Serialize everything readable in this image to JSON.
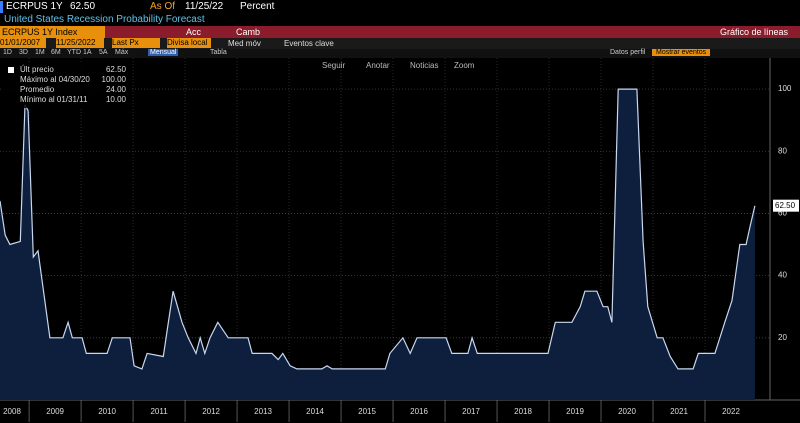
{
  "header": {
    "ticker": "ECRPUS 1Y",
    "last": "62.50",
    "as_of_label": "As Of",
    "as_of": "11/25/22",
    "units": "Percent"
  },
  "description": "United States Recession Probability Forecast",
  "red_bar": {
    "security": "ECRPUS 1Y Index",
    "actions": "Acc",
    "change": "Camb",
    "chart_type": "Gráfico de líneas"
  },
  "toolbar": {
    "start": "01/01/2007",
    "end": "11/25/2022",
    "field": "Last Px",
    "currency": "Divisa local",
    "moving_avg": "Med móv",
    "events": "Eventos clave",
    "profile": "Datos perfil",
    "show_events": "Mostrar eventos"
  },
  "periods": [
    "1D",
    "3D",
    "1M",
    "6M",
    "YTD",
    "1A",
    "5A",
    "Máx"
  ],
  "frequency": "Mensual",
  "table_button": "Tabla",
  "chart_tools": [
    "Seguir",
    "Anotar",
    "Noticias",
    "Zoom"
  ],
  "legend_stats": [
    {
      "label": "Últ precio",
      "value": "62.50"
    },
    {
      "label": "Máximo al 04/30/20",
      "value": "100.00"
    },
    {
      "label": "Promedio",
      "value": "24.00"
    },
    {
      "label": "Mínimo al 01/31/11",
      "value": "10.00"
    }
  ],
  "chart_data": {
    "type": "area",
    "xlim": [
      2008.44,
      2023.25
    ],
    "ylim": [
      0,
      110
    ],
    "yticks": [
      20,
      40,
      60,
      80,
      100
    ],
    "xticks": [
      2008,
      2009,
      2010,
      2011,
      2012,
      2013,
      2014,
      2015,
      2016,
      2017,
      2018,
      2019,
      2020,
      2021,
      2022
    ],
    "grid": true,
    "last_value_label": "62.50",
    "series": [
      {
        "name": "Últ precio",
        "color": "#c8d8f0",
        "fill": "#0d1f3d",
        "x": [
          2008.44,
          2008.54,
          2008.63,
          2008.83,
          2008.92,
          2008.98,
          2009.08,
          2009.17,
          2009.4,
          2009.65,
          2009.75,
          2009.83,
          2010.02,
          2010.1,
          2010.5,
          2010.6,
          2010.94,
          2011.02,
          2011.17,
          2011.27,
          2011.58,
          2011.67,
          2011.77,
          2011.94,
          2012.06,
          2012.21,
          2012.29,
          2012.38,
          2012.48,
          2012.63,
          2012.83,
          2013.21,
          2013.29,
          2013.67,
          2013.79,
          2013.88,
          2014.02,
          2014.15,
          2014.63,
          2014.73,
          2014.83,
          2015.85,
          2015.94,
          2016.19,
          2016.33,
          2016.46,
          2017.02,
          2017.13,
          2017.44,
          2017.52,
          2017.62,
          2018.98,
          2019.12,
          2019.44,
          2019.6,
          2019.69,
          2019.92,
          2020.04,
          2020.13,
          2020.21,
          2020.33,
          2020.69,
          2020.81,
          2020.9,
          2021.08,
          2021.19,
          2021.33,
          2021.48,
          2021.77,
          2021.87,
          2022.19,
          2022.38,
          2022.52,
          2022.67,
          2022.79,
          2022.87,
          2022.96
        ],
        "values": [
          64,
          53,
          50,
          51,
          95,
          93,
          46,
          48,
          20,
          20,
          25,
          20,
          20,
          15,
          15,
          20,
          20,
          11,
          10,
          15,
          14,
          24,
          35,
          25,
          20,
          15,
          20,
          15,
          20,
          25,
          20,
          20,
          15,
          15,
          13,
          15,
          11,
          10,
          10,
          11,
          10,
          10,
          15,
          20,
          15,
          20,
          20,
          15,
          15,
          20,
          15,
          15,
          25,
          25,
          30,
          35,
          35,
          30,
          30,
          25,
          100,
          100,
          51,
          30,
          20,
          20,
          14,
          10,
          10,
          15,
          15,
          25,
          32,
          50,
          50,
          56,
          62.5
        ]
      }
    ]
  }
}
